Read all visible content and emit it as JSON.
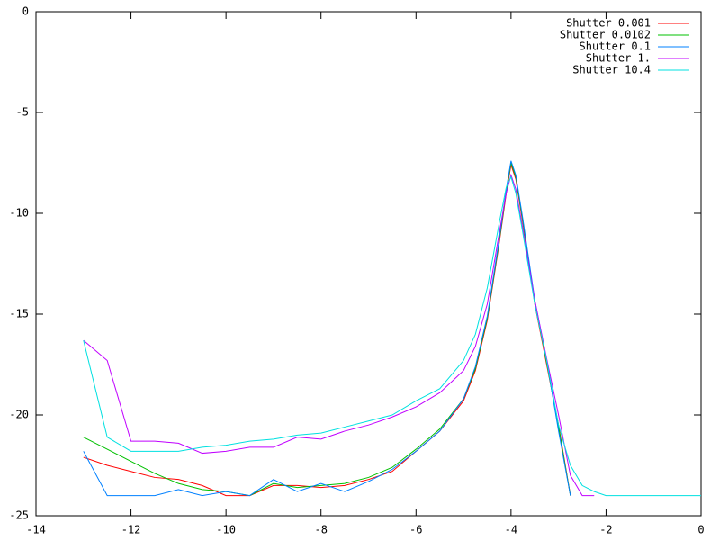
{
  "chart_data": {
    "type": "line",
    "x": [
      -13,
      -12.5,
      -12,
      -11.5,
      -11,
      -10.5,
      -10,
      -9.5,
      -9,
      -8.5,
      -8,
      -7.5,
      -7,
      -6.5,
      -6,
      -5.5,
      -5,
      -4.75,
      -4.5,
      -4.25,
      -4.1,
      -4,
      -3.9,
      -3.75,
      -3.5,
      -3.25,
      -3,
      -2.75,
      -2.5,
      -2.25,
      -2,
      -1,
      0
    ],
    "series": [
      {
        "name": "Shutter 0.001",
        "color": "#ff0000",
        "values": [
          -22.1,
          -22.5,
          -22.8,
          -23.1,
          -23.2,
          -23.5,
          -24,
          -24,
          -23.5,
          -23.5,
          -23.6,
          -23.5,
          -23.2,
          -22.8,
          -21.8,
          -20.8,
          -19.3,
          -17.8,
          -15.3,
          -11.5,
          -9,
          -7.6,
          -8.3,
          -10.5,
          -14.5,
          -17.5,
          -20.5,
          -24,
          null,
          null,
          null,
          null,
          null
        ]
      },
      {
        "name": "Shutter 0.0102",
        "color": "#00c000",
        "values": [
          -21.1,
          -21.7,
          -22.3,
          -22.9,
          -23.4,
          -23.7,
          -23.8,
          -24,
          -23.4,
          -23.6,
          -23.5,
          -23.4,
          -23.1,
          -22.6,
          -21.7,
          -20.7,
          -19.2,
          -17.7,
          -15.2,
          -11.4,
          -8.9,
          -7.5,
          -8.2,
          -10.4,
          -14.4,
          -17.4,
          -20.6,
          -24,
          null,
          null,
          null,
          null,
          null
        ]
      },
      {
        "name": "Shutter 0.1",
        "color": "#0080ff",
        "values": [
          -21.8,
          -24,
          -24,
          -24,
          -23.7,
          -24,
          -23.8,
          -24,
          -23.2,
          -23.8,
          -23.4,
          -23.8,
          -23.3,
          -22.7,
          -21.8,
          -20.8,
          -19.2,
          -17.6,
          -15.1,
          -11.3,
          -8.8,
          -7.4,
          -8.1,
          -10.3,
          -14.3,
          -17.3,
          -20.8,
          -24,
          null,
          null,
          null,
          null,
          null
        ]
      },
      {
        "name": "Shutter 1.",
        "color": "#c000ff",
        "values": [
          -16.3,
          -17.3,
          -21.3,
          -21.3,
          -21.4,
          -21.9,
          -21.8,
          -21.6,
          -21.6,
          -21.1,
          -21.2,
          -20.8,
          -20.5,
          -20.1,
          -19.6,
          -18.9,
          -17.8,
          -16.6,
          -14.5,
          -11,
          -9,
          -8.1,
          -8.8,
          -10.8,
          -14.3,
          -17.2,
          -20,
          -23,
          -24,
          -24,
          null,
          null,
          null
        ]
      },
      {
        "name": "Shutter 10.4",
        "color": "#00e0e0",
        "values": [
          -16.3,
          -21.1,
          -21.8,
          -21.8,
          -21.8,
          -21.6,
          -21.5,
          -21.3,
          -21.2,
          -21,
          -20.9,
          -20.6,
          -20.3,
          -20,
          -19.3,
          -18.7,
          -17.3,
          -16,
          -13.7,
          -10.5,
          -8.7,
          -8.2,
          -9,
          -11,
          -14.5,
          -17.3,
          -20.5,
          -22.5,
          -23.5,
          -23.8,
          -24,
          -24,
          -24
        ]
      }
    ],
    "xlim": [
      -14,
      0
    ],
    "xticks": [
      -14,
      -12,
      -10,
      -8,
      -6,
      -4,
      -2,
      0
    ],
    "ylim": [
      -25,
      0
    ],
    "yticks": [
      -25,
      -20,
      -15,
      -10,
      -5,
      0
    ],
    "legend": "upper right"
  }
}
